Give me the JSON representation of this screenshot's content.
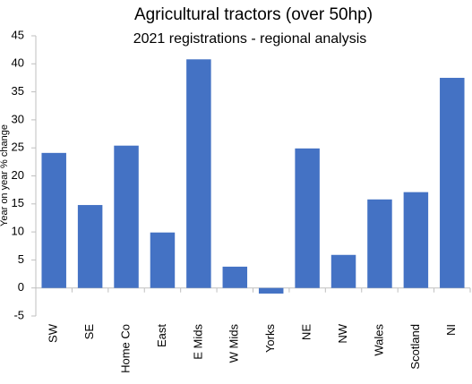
{
  "chart_data": {
    "type": "bar",
    "title": "Agricultural tractors (over 50hp)",
    "subtitle": "2021 registrations - regional analysis",
    "y_label": "Year on year % change",
    "categories": [
      "SW",
      "SE",
      "Home Co",
      "East",
      "E Mids",
      "W Mids",
      "Yorks",
      "NE",
      "NW",
      "Wales",
      "Scotland",
      "NI"
    ],
    "values": [
      24.1,
      14.8,
      25.4,
      9.9,
      40.8,
      3.8,
      -1,
      24.9,
      5.9,
      15.8,
      17.1,
      37.5
    ],
    "color": "#4472c4",
    "ylim": [
      -5,
      45
    ],
    "yticks": [
      -5,
      0,
      5,
      10,
      15,
      20,
      25,
      30,
      35,
      40,
      45
    ],
    "grid": false
  }
}
